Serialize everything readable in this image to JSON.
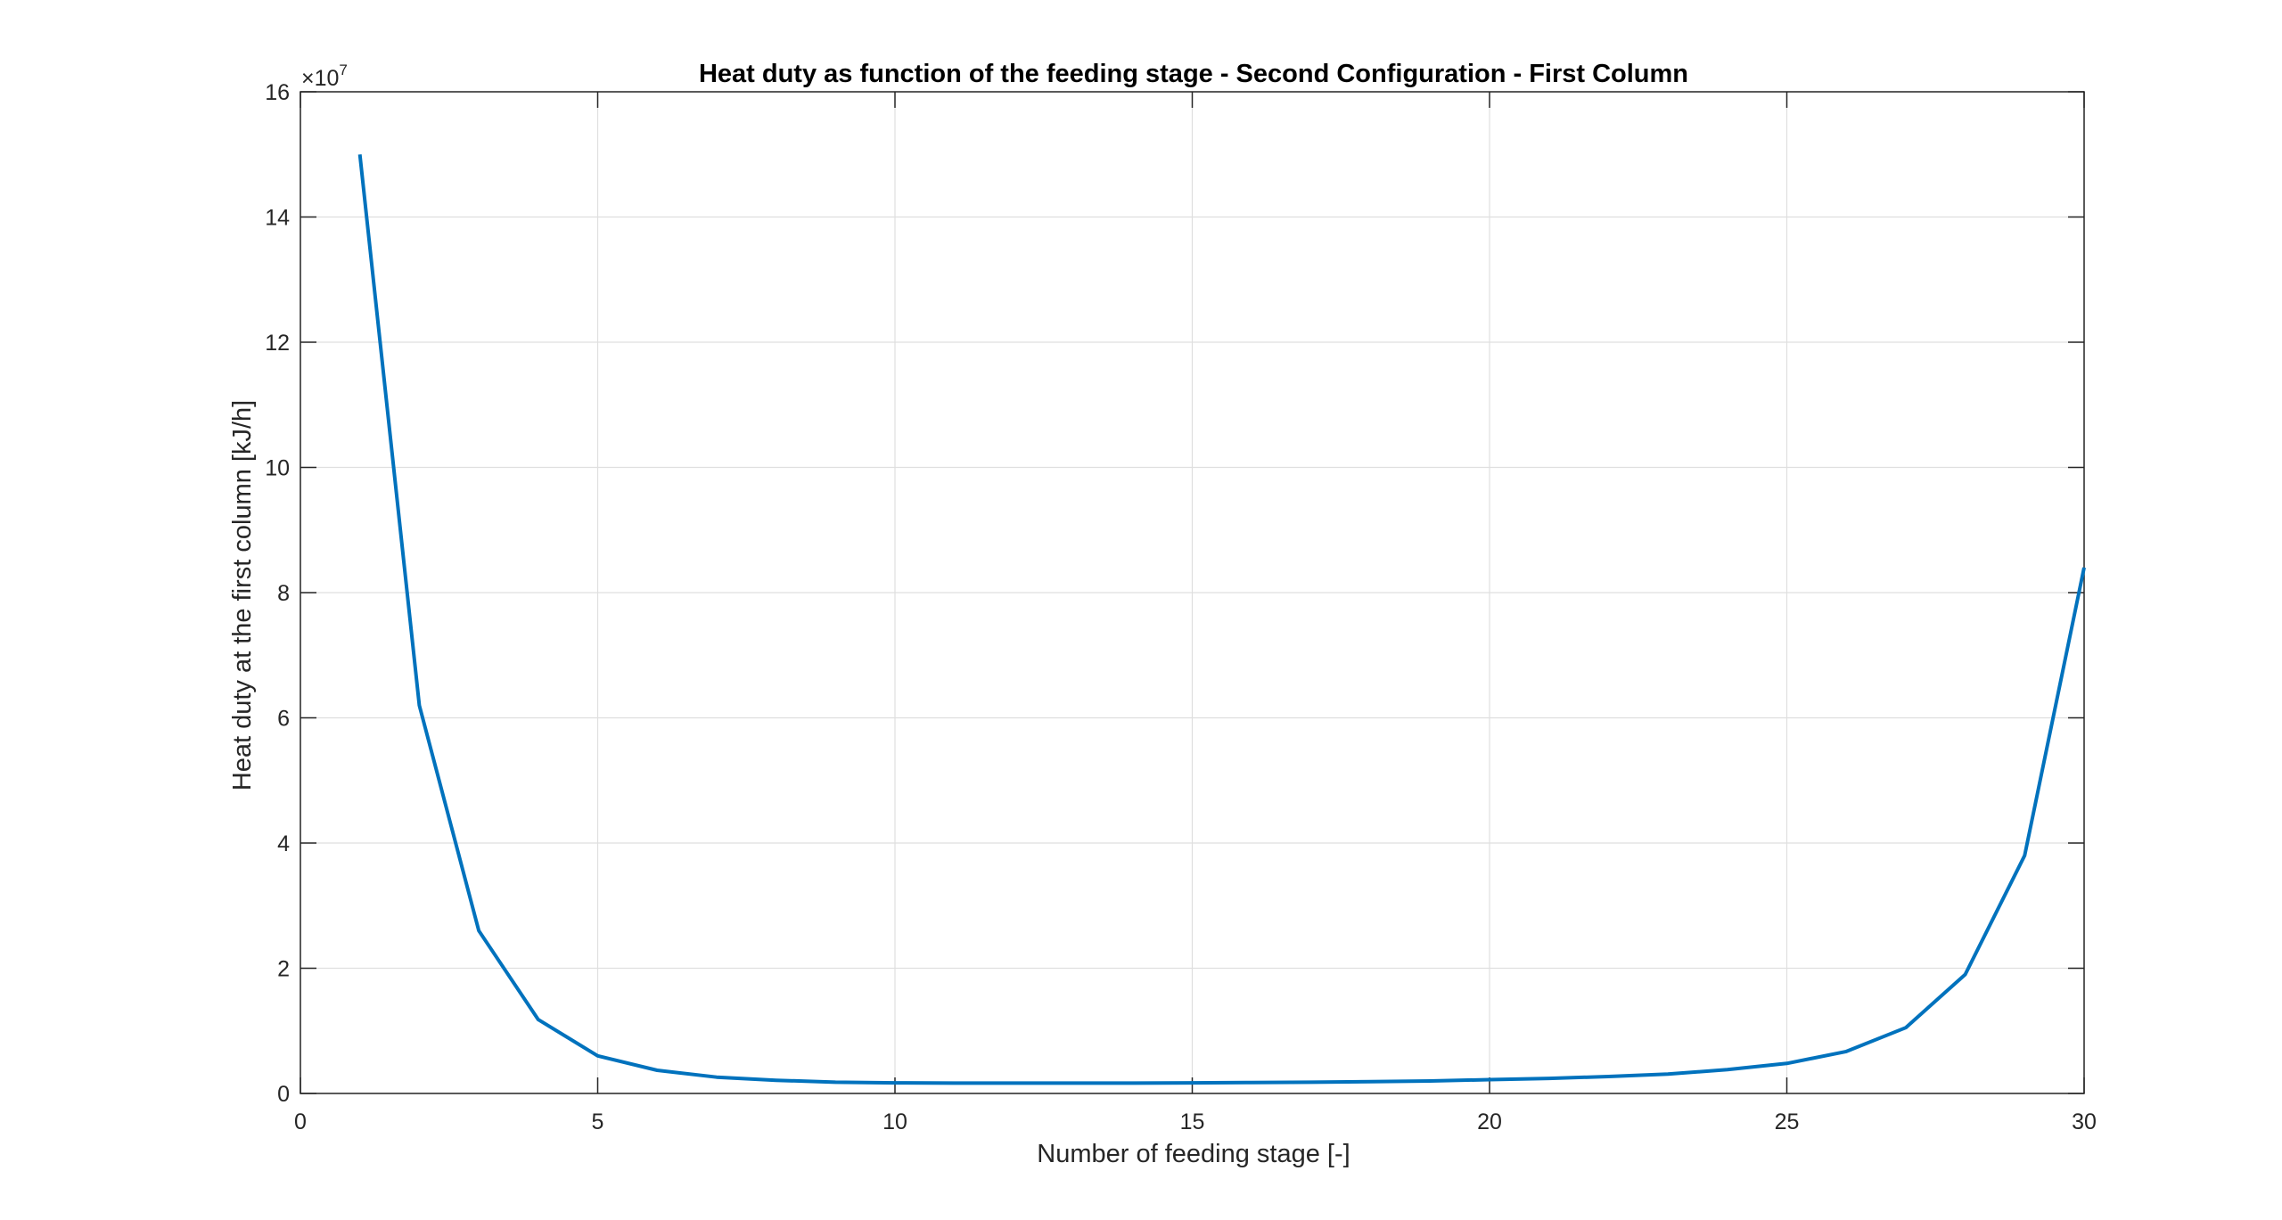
{
  "chart_data": {
    "type": "line",
    "title": "Heat duty as function of the feeding stage - Second Configuration - First Column",
    "xlabel": "Number of feeding stage [-]",
    "ylabel": "Heat duty at the first column [kJ/h]",
    "xlim": [
      0,
      30
    ],
    "ylim": [
      0,
      16
    ],
    "y_exponent_base": "×10",
    "y_exponent_power": "7",
    "x_ticks": [
      0,
      5,
      10,
      15,
      20,
      25,
      30
    ],
    "y_ticks": [
      0,
      2,
      4,
      6,
      8,
      10,
      12,
      14,
      16
    ],
    "grid": true,
    "series": [
      {
        "color": "#0072BD",
        "x": [
          1,
          2,
          3,
          4,
          5,
          6,
          7,
          8,
          9,
          10,
          11,
          12,
          13,
          14,
          15,
          16,
          17,
          18,
          19,
          20,
          21,
          22,
          23,
          24,
          25,
          26,
          27,
          28,
          29,
          30
        ],
        "y": [
          15.0,
          6.2,
          2.6,
          1.18,
          0.6,
          0.37,
          0.26,
          0.21,
          0.18,
          0.17,
          0.165,
          0.165,
          0.165,
          0.165,
          0.17,
          0.175,
          0.18,
          0.19,
          0.2,
          0.22,
          0.24,
          0.27,
          0.31,
          0.38,
          0.48,
          0.67,
          1.05,
          1.9,
          3.8,
          8.4
        ]
      }
    ]
  }
}
